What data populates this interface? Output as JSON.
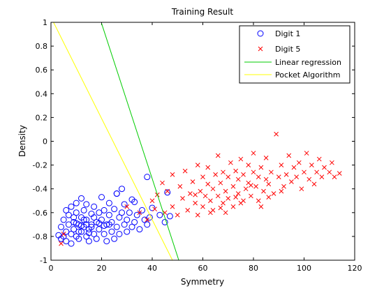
{
  "chart_data": {
    "type": "scatter",
    "title": "Training Result",
    "xlabel": "Symmetry",
    "ylabel": "Density",
    "xlim": [
      0,
      120
    ],
    "ylim": [
      -1,
      1
    ],
    "xticks": [
      "0",
      "20",
      "40",
      "60",
      "80",
      "100",
      "120"
    ],
    "yticks": [
      "-1",
      "-0.8",
      "-0.6",
      "-0.4",
      "-0.2",
      "0",
      "0.2",
      "0.4",
      "0.6",
      "0.8",
      "1"
    ],
    "grid": false,
    "legend_position": "top-right",
    "series": [
      {
        "name": "Digit 1",
        "kind": "scatter",
        "marker": "circle",
        "color": "#0000ff",
        "points": [
          [
            3,
            -0.79
          ],
          [
            4,
            -0.82
          ],
          [
            4,
            -0.72
          ],
          [
            5,
            -0.8
          ],
          [
            5,
            -0.66
          ],
          [
            6,
            -0.76
          ],
          [
            6,
            -0.84
          ],
          [
            6,
            -0.58
          ],
          [
            7,
            -0.7
          ],
          [
            7,
            -0.62
          ],
          [
            8,
            -0.78
          ],
          [
            8,
            -0.55
          ],
          [
            8,
            -0.86
          ],
          [
            9,
            -0.68
          ],
          [
            9,
            -0.74
          ],
          [
            10,
            -0.6
          ],
          [
            10,
            -0.8
          ],
          [
            10,
            -0.52
          ],
          [
            11,
            -0.7
          ],
          [
            11,
            -0.82
          ],
          [
            12,
            -0.64
          ],
          [
            12,
            -0.76
          ],
          [
            12,
            -0.48
          ],
          [
            13,
            -0.72
          ],
          [
            13,
            -0.58
          ],
          [
            14,
            -0.8
          ],
          [
            14,
            -0.66
          ],
          [
            14,
            -0.53
          ],
          [
            15,
            -0.74
          ],
          [
            15,
            -0.84
          ],
          [
            16,
            -0.61
          ],
          [
            16,
            -0.7
          ],
          [
            17,
            -0.78
          ],
          [
            17,
            -0.55
          ],
          [
            18,
            -0.68
          ],
          [
            18,
            -0.82
          ],
          [
            19,
            -0.6
          ],
          [
            19,
            -0.74
          ],
          [
            20,
            -0.66
          ],
          [
            20,
            -0.47
          ],
          [
            21,
            -0.78
          ],
          [
            21,
            -0.58
          ],
          [
            22,
            -0.7
          ],
          [
            22,
            -0.84
          ],
          [
            23,
            -0.62
          ],
          [
            23,
            -0.52
          ],
          [
            24,
            -0.76
          ],
          [
            24,
            -0.68
          ],
          [
            25,
            -0.57
          ],
          [
            25,
            -0.82
          ],
          [
            26,
            -0.72
          ],
          [
            26,
            -0.44
          ],
          [
            27,
            -0.64
          ],
          [
            27,
            -0.78
          ],
          [
            28,
            -0.6
          ],
          [
            29,
            -0.7
          ],
          [
            29,
            -0.53
          ],
          [
            30,
            -0.76
          ],
          [
            30,
            -0.66
          ],
          [
            31,
            -0.6
          ],
          [
            32,
            -0.72
          ],
          [
            32,
            -0.49
          ],
          [
            33,
            -0.68
          ],
          [
            34,
            -0.62
          ],
          [
            35,
            -0.74
          ],
          [
            36,
            -0.58
          ],
          [
            37,
            -0.66
          ],
          [
            38,
            -0.7
          ],
          [
            39,
            -0.64
          ],
          [
            40,
            -0.56
          ],
          [
            28,
            -0.4
          ],
          [
            26,
            -0.44
          ],
          [
            33,
            -0.51
          ],
          [
            38,
            -0.3
          ],
          [
            46,
            -0.43
          ],
          [
            43,
            -0.62
          ],
          [
            45,
            -0.68
          ],
          [
            47,
            -0.63
          ],
          [
            10,
            -0.69
          ],
          [
            12,
            -0.71
          ],
          [
            14,
            -0.7
          ],
          [
            16,
            -0.72
          ],
          [
            9,
            -0.64
          ],
          [
            11,
            -0.76
          ],
          [
            13,
            -0.66
          ],
          [
            15,
            -0.77
          ],
          [
            17,
            -0.64
          ],
          [
            19,
            -0.69
          ],
          [
            21,
            -0.71
          ],
          [
            23,
            -0.7
          ]
        ]
      },
      {
        "name": "Digit 5",
        "kind": "scatter",
        "marker": "x",
        "color": "#ff0000",
        "points": [
          [
            4,
            -0.86
          ],
          [
            5,
            -0.78
          ],
          [
            30,
            -0.55
          ],
          [
            35,
            -0.6
          ],
          [
            38,
            -0.66
          ],
          [
            40,
            -0.5
          ],
          [
            41,
            -0.57
          ],
          [
            42,
            -0.45
          ],
          [
            44,
            -0.35
          ],
          [
            45,
            -0.6
          ],
          [
            46,
            -0.42
          ],
          [
            48,
            -0.28
          ],
          [
            48,
            -0.55
          ],
          [
            50,
            -0.62
          ],
          [
            51,
            -0.38
          ],
          [
            52,
            -0.48
          ],
          [
            53,
            -0.25
          ],
          [
            54,
            -0.58
          ],
          [
            55,
            -0.44
          ],
          [
            56,
            -0.34
          ],
          [
            57,
            -0.52
          ],
          [
            58,
            -0.2
          ],
          [
            58,
            -0.62
          ],
          [
            59,
            -0.42
          ],
          [
            60,
            -0.3
          ],
          [
            60,
            -0.55
          ],
          [
            61,
            -0.46
          ],
          [
            62,
            -0.36
          ],
          [
            62,
            -0.22
          ],
          [
            63,
            -0.5
          ],
          [
            64,
            -0.4
          ],
          [
            64,
            -0.58
          ],
          [
            65,
            -0.28
          ],
          [
            66,
            -0.46
          ],
          [
            66,
            -0.12
          ],
          [
            67,
            -0.35
          ],
          [
            68,
            -0.52
          ],
          [
            68,
            -0.26
          ],
          [
            69,
            -0.42
          ],
          [
            70,
            -0.3
          ],
          [
            70,
            -0.48
          ],
          [
            71,
            -0.18
          ],
          [
            72,
            -0.38
          ],
          [
            72,
            -0.55
          ],
          [
            73,
            -0.25
          ],
          [
            74,
            -0.44
          ],
          [
            74,
            -0.32
          ],
          [
            75,
            -0.15
          ],
          [
            76,
            -0.5
          ],
          [
            76,
            -0.28
          ],
          [
            77,
            -0.4
          ],
          [
            78,
            -0.2
          ],
          [
            78,
            -0.35
          ],
          [
            79,
            -0.46
          ],
          [
            80,
            -0.26
          ],
          [
            80,
            -0.1
          ],
          [
            81,
            -0.38
          ],
          [
            82,
            -0.3
          ],
          [
            82,
            -0.5
          ],
          [
            83,
            -0.22
          ],
          [
            84,
            -0.42
          ],
          [
            85,
            -0.32
          ],
          [
            85,
            -0.14
          ],
          [
            86,
            -0.36
          ],
          [
            87,
            -0.26
          ],
          [
            88,
            -0.44
          ],
          [
            89,
            0.06
          ],
          [
            90,
            -0.3
          ],
          [
            91,
            -0.2
          ],
          [
            92,
            -0.38
          ],
          [
            93,
            -0.28
          ],
          [
            94,
            -0.12
          ],
          [
            95,
            -0.34
          ],
          [
            96,
            -0.22
          ],
          [
            97,
            -0.3
          ],
          [
            98,
            -0.18
          ],
          [
            99,
            -0.4
          ],
          [
            100,
            -0.26
          ],
          [
            101,
            -0.1
          ],
          [
            102,
            -0.32
          ],
          [
            103,
            -0.2
          ],
          [
            104,
            -0.36
          ],
          [
            105,
            -0.26
          ],
          [
            106,
            -0.15
          ],
          [
            107,
            -0.3
          ],
          [
            108,
            -0.22
          ],
          [
            110,
            -0.26
          ],
          [
            111,
            -0.18
          ],
          [
            112,
            -0.3
          ],
          [
            114,
            -0.27
          ],
          [
            57,
            -0.45
          ],
          [
            63,
            -0.6
          ],
          [
            67,
            -0.56
          ],
          [
            69,
            -0.6
          ],
          [
            73,
            -0.47
          ],
          [
            75,
            -0.52
          ],
          [
            79,
            -0.37
          ],
          [
            83,
            -0.55
          ],
          [
            86,
            -0.47
          ],
          [
            91,
            -0.42
          ]
        ]
      },
      {
        "name": "Linear regression",
        "kind": "line",
        "color": "#00cc00",
        "points": [
          [
            20,
            0.99
          ],
          [
            50.5,
            -1.0
          ]
        ]
      },
      {
        "name": "Pocket Algorithm",
        "kind": "line",
        "color": "#ffff00",
        "points": [
          [
            1,
            1.0
          ],
          [
            48,
            -1.0
          ]
        ]
      }
    ]
  }
}
